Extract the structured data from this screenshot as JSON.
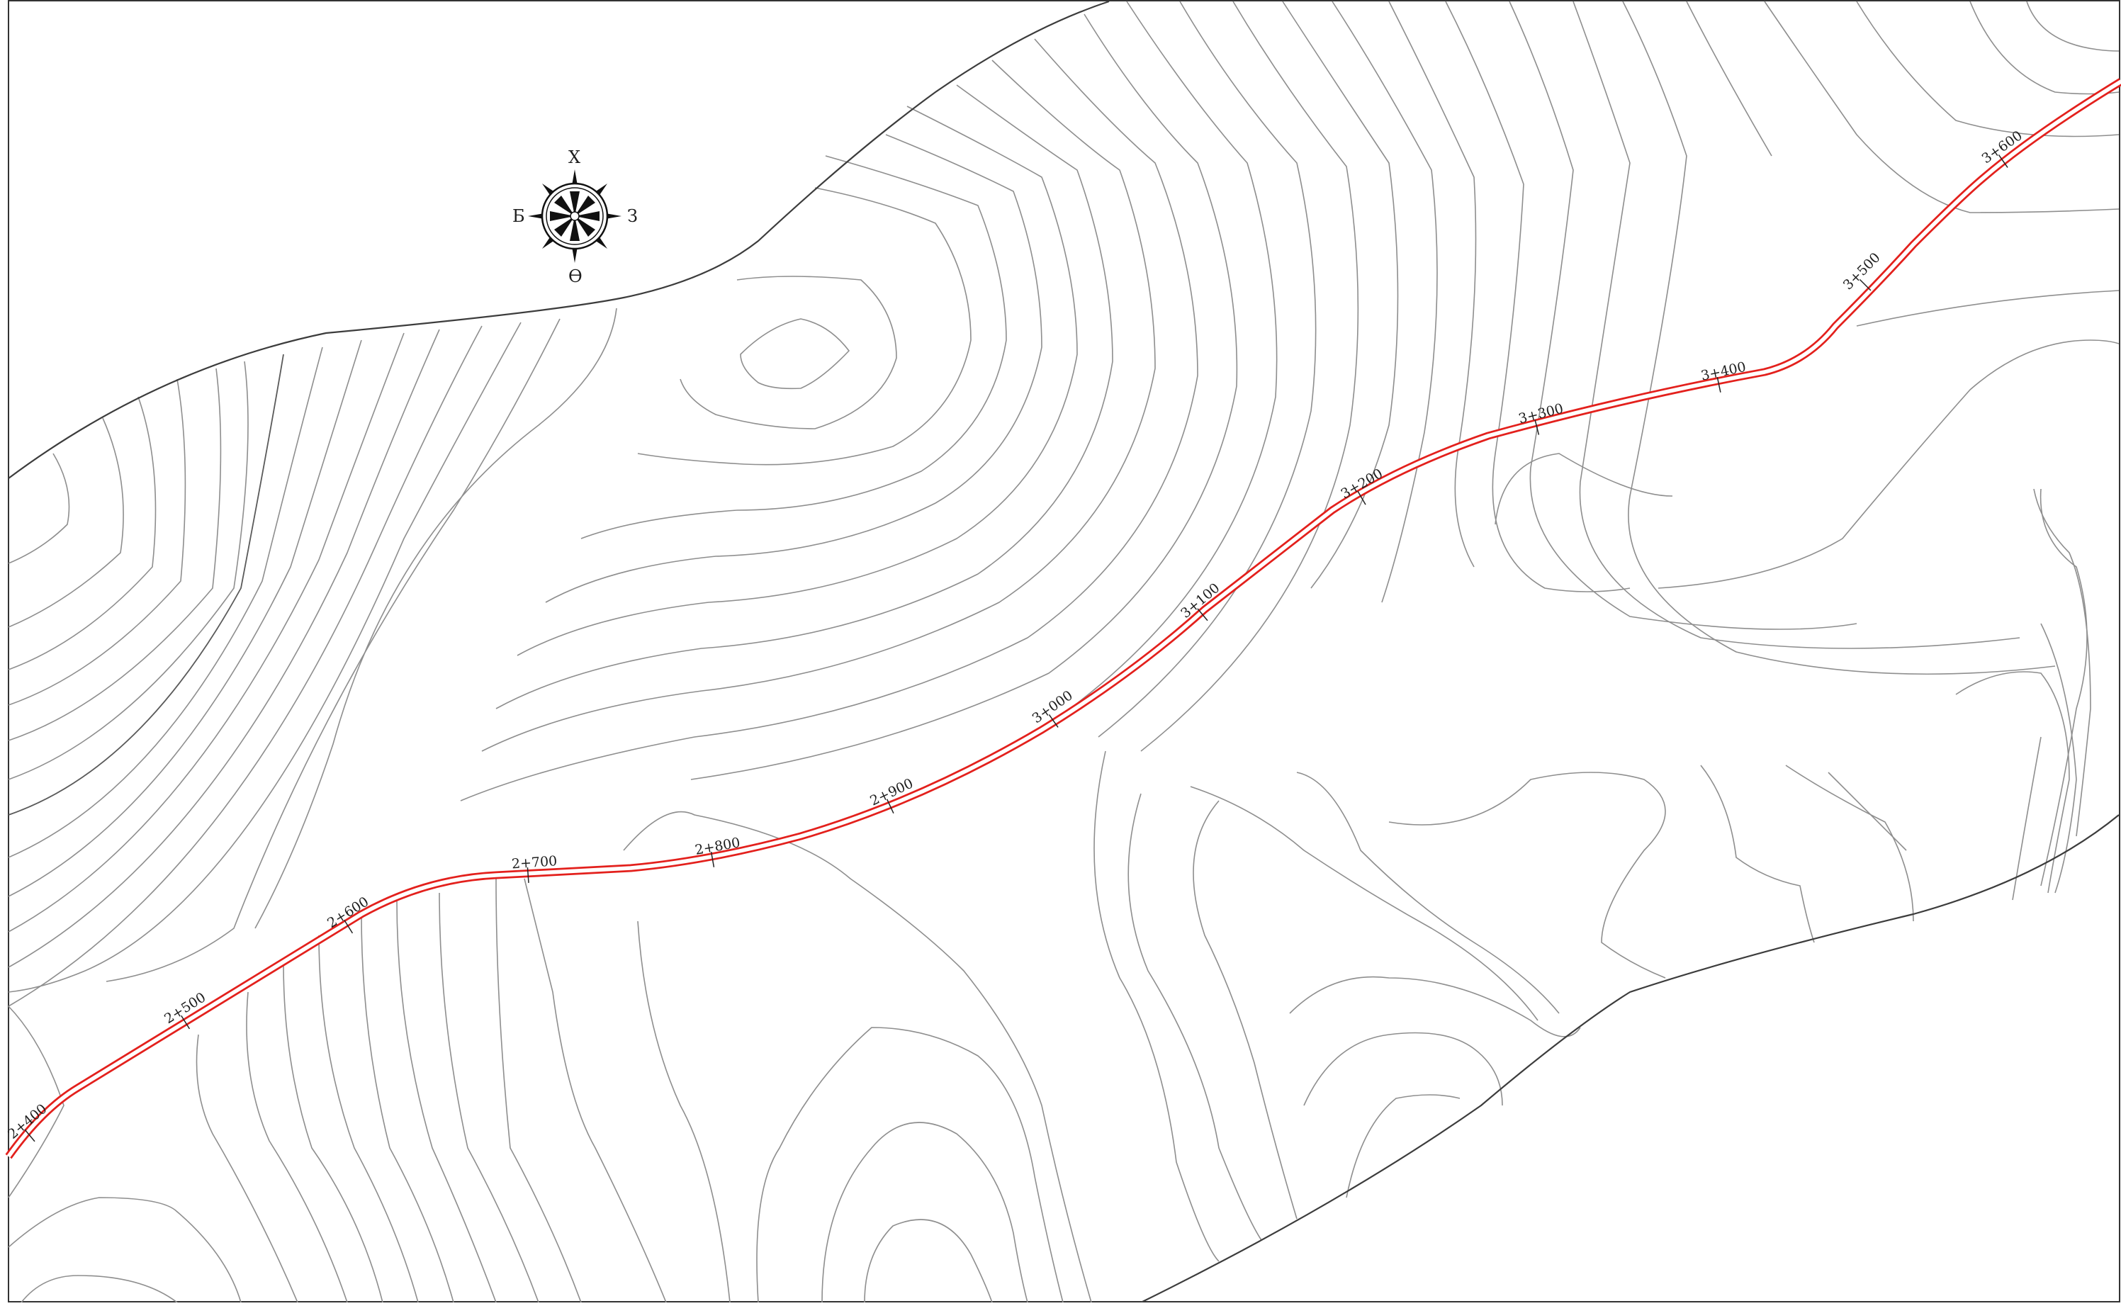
{
  "map": {
    "colors": {
      "background": "#ffffff",
      "road": "#e3201c",
      "contour": "#8e8e8e",
      "boundary": "#3c3c3c",
      "text": "#1e1e1e"
    },
    "compass": {
      "icon": "compass-rose-icon",
      "north": "Х",
      "west": "Б",
      "east": "З",
      "south": "Ө"
    },
    "road": {
      "chainage_labels": [
        "2+400",
        "2+500",
        "2+600",
        "2+700",
        "2+800",
        "2+900",
        "3+000",
        "3+100",
        "3+200",
        "3+300",
        "3+400",
        "3+500",
        "3+600"
      ]
    }
  }
}
